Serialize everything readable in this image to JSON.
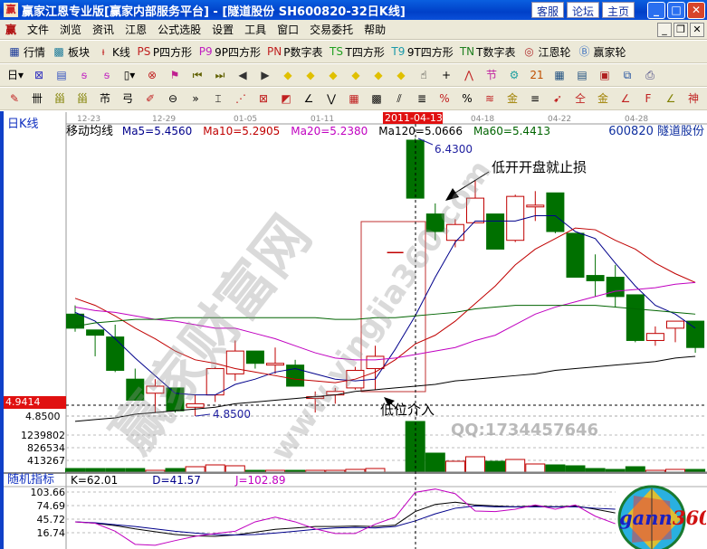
{
  "window": {
    "title": "赢家江恩专业版[赢家内部服务平台] - [隧道股份   SH600820-32日K线]",
    "logo_text": "赢",
    "buttons": [
      "客服",
      "论坛",
      "主页"
    ]
  },
  "menu": {
    "items": [
      "文件",
      "浏览",
      "资讯",
      "江恩",
      "公式选股",
      "设置",
      "工具",
      "窗口",
      "交易委托",
      "帮助"
    ]
  },
  "toolbar1": [
    {
      "icon": "grid-table-icon",
      "glyph": "▦",
      "label": "行情"
    },
    {
      "icon": "blocks-icon",
      "glyph": "▩",
      "label": "板块"
    },
    {
      "icon": "kline-icon",
      "glyph": "ᵼ",
      "label": "K线"
    },
    {
      "icon": "ps-icon",
      "glyph": "PS",
      "label": "P四方形"
    },
    {
      "icon": "p9-icon",
      "glyph": "P9",
      "label": "9P四方形"
    },
    {
      "icon": "pn-icon",
      "glyph": "PN",
      "label": "P数字表"
    },
    {
      "icon": "ts-icon",
      "glyph": "TS",
      "label": "T四方形"
    },
    {
      "icon": "t9-icon",
      "glyph": "T9",
      "label": "9T四方形"
    },
    {
      "icon": "tn-icon",
      "glyph": "TN",
      "label": "T数字表"
    },
    {
      "icon": "gann-wheel-icon",
      "glyph": "◎",
      "label": "江恩轮"
    },
    {
      "icon": "big-wheel-icon",
      "glyph": "Ⓑ",
      "label": "赢家轮"
    }
  ],
  "toolbar2": [
    {
      "icon": "day-period-icon",
      "glyph": "日▾"
    },
    {
      "icon": "pattern-icon",
      "glyph": "⊠"
    },
    {
      "icon": "doc-icon",
      "glyph": "▤"
    },
    {
      "icon": "wave3-icon",
      "glyph": "ᵴ"
    },
    {
      "icon": "wave9-icon",
      "glyph": "ᵴ"
    },
    {
      "icon": "candle-type-icon",
      "glyph": "▯▾"
    },
    {
      "icon": "cross-tool-icon",
      "glyph": "⊗"
    },
    {
      "icon": "flag-icon",
      "glyph": "⚑"
    },
    {
      "icon": "first-icon",
      "glyph": "⏮"
    },
    {
      "icon": "last-icon",
      "glyph": "⏭"
    },
    {
      "icon": "prev-icon",
      "glyph": "◀"
    },
    {
      "icon": "next-icon",
      "glyph": "▶"
    },
    {
      "icon": "diamond-left-icon",
      "glyph": "◆"
    },
    {
      "icon": "diamond-right-icon",
      "glyph": "◆"
    },
    {
      "icon": "diamond-h-icon",
      "glyph": "◆"
    },
    {
      "icon": "diamond-x-icon",
      "glyph": "◆"
    },
    {
      "icon": "diamond-plus-icon",
      "glyph": "◆"
    },
    {
      "icon": "diamond-v-icon",
      "glyph": "◆"
    },
    {
      "icon": "hand-icon",
      "glyph": "☝"
    },
    {
      "icon": "crosshair-icon",
      "glyph": "+"
    },
    {
      "icon": "draw-line-icon",
      "glyph": "⋀"
    },
    {
      "icon": "festival-icon",
      "glyph": "节"
    },
    {
      "icon": "gear-chart-icon",
      "glyph": "⚙"
    },
    {
      "icon": "calendar-icon",
      "glyph": "21"
    },
    {
      "icon": "calculator-icon",
      "glyph": "▦"
    },
    {
      "icon": "notes-icon",
      "glyph": "▤"
    },
    {
      "icon": "save-icon",
      "glyph": "▣"
    },
    {
      "icon": "network-icon",
      "glyph": "⧉"
    },
    {
      "icon": "print-icon",
      "glyph": "⎙"
    }
  ],
  "toolbar3": [
    {
      "icon": "pen-icon",
      "glyph": "✎"
    },
    {
      "icon": "parallel-icon",
      "glyph": "卌"
    },
    {
      "icon": "gann-square-icon",
      "glyph": "甾"
    },
    {
      "icon": "gann-square2-icon",
      "glyph": "甾"
    },
    {
      "icon": "tool-f-icon",
      "glyph": "芇"
    },
    {
      "icon": "spiral-icon",
      "glyph": "弓"
    },
    {
      "icon": "fan-pen-icon",
      "glyph": "✐"
    },
    {
      "icon": "circle-icon",
      "glyph": "⊖"
    },
    {
      "icon": "more-icon",
      "glyph": "»"
    },
    {
      "icon": "rect-tool-icon",
      "glyph": "⌶"
    },
    {
      "icon": "fan-lines-icon",
      "glyph": "⋰"
    },
    {
      "icon": "box-icon",
      "glyph": "⊠"
    },
    {
      "icon": "angle-box-icon",
      "glyph": "◩"
    },
    {
      "icon": "angle-icon",
      "glyph": "∠"
    },
    {
      "icon": "v-icon",
      "glyph": "⋁"
    },
    {
      "icon": "grid-icon",
      "glyph": "▦"
    },
    {
      "icon": "grid2-icon",
      "glyph": "▩"
    },
    {
      "icon": "slash-icon",
      "glyph": "⫽"
    },
    {
      "icon": "ruler-icon",
      "glyph": "≣"
    },
    {
      "icon": "percent-fan-icon",
      "glyph": "%"
    },
    {
      "icon": "percent-icon",
      "glyph": "%"
    },
    {
      "icon": "percent-lines-icon",
      "glyph": "≋"
    },
    {
      "icon": "gold-circle-icon",
      "glyph": "金"
    },
    {
      "icon": "gold-lines-icon",
      "glyph": "≡"
    },
    {
      "icon": "arrow-tool-icon",
      "glyph": "➹"
    },
    {
      "icon": "gold-ratio-icon",
      "glyph": "仝"
    },
    {
      "icon": "gold-icon",
      "glyph": "金"
    },
    {
      "icon": "fan-j-icon",
      "glyph": "∠"
    },
    {
      "icon": "fan-f-icon",
      "glyph": "F"
    },
    {
      "icon": "fan-gold-icon",
      "glyph": "∠"
    },
    {
      "icon": "fan-shen-icon",
      "glyph": "神"
    },
    {
      "icon": "fan-ying-icon",
      "glyph": "赢"
    },
    {
      "icon": "fan-e-icon",
      "glyph": "∠"
    }
  ],
  "chart": {
    "period_label": "日K线",
    "stock": "600820 隧道股份",
    "date_labels": [
      "12-23",
      "12-29",
      "01-05",
      "01-11",
      "04-18",
      "04-22",
      "04-28"
    ],
    "cursor_date": "2011-04-13",
    "ma_title": "移动均线",
    "ma_readouts": [
      {
        "text": "Ma5=5.4560",
        "color": "#00008b"
      },
      {
        "text": "Ma10=5.2905",
        "color": "#c00000"
      },
      {
        "text": "Ma20=5.2380",
        "color": "#c000c0"
      },
      {
        "text": "Ma120=5.0666",
        "color": "#000000"
      },
      {
        "text": "Ma60=5.4413",
        "color": "#006400"
      }
    ],
    "cursor_price": "4.9414",
    "price_axis_label": "4.8500",
    "high_label": "6.4300",
    "low_label": "4.8500",
    "annotation_stop": "低开开盘就止损",
    "annotation_entry": "低位介入",
    "watermark_main": "赢家财富网",
    "watermark_url": "www.yingjia360.com",
    "watermark_qq": "QQ:1734457646",
    "up_color": "#c00000",
    "down_color": "#007000",
    "candles": [
      [
        5.43,
        5.48,
        5.33,
        5.35
      ],
      [
        5.34,
        5.34,
        5.19,
        5.31
      ],
      [
        5.3,
        5.37,
        5.1,
        5.11
      ],
      [
        5.06,
        5.12,
        4.94,
        4.94
      ],
      [
        4.98,
        5.06,
        4.87,
        5.02
      ],
      [
        5.01,
        5.01,
        4.87,
        4.88
      ],
      [
        4.9,
        4.97,
        4.85,
        4.92
      ],
      [
        4.97,
        5.13,
        4.93,
        5.12
      ],
      [
        5.09,
        5.28,
        5.05,
        5.22
      ],
      [
        5.22,
        5.22,
        5.12,
        5.15
      ],
      [
        5.14,
        5.24,
        5.09,
        5.15
      ],
      [
        5.14,
        5.17,
        5.02,
        5.02
      ],
      [
        4.95,
        4.99,
        4.87,
        4.96
      ],
      [
        4.97,
        5.01,
        4.92,
        4.99
      ],
      [
        5.01,
        5.13,
        5.0,
        5.11
      ],
      [
        5.12,
        5.25,
        5.0,
        5.19
      ],
      [
        5.78,
        5.78,
        5.78,
        5.78
      ],
      [
        6.42,
        6.43,
        6.09,
        6.09
      ],
      [
        6.0,
        6.06,
        5.85,
        5.9
      ],
      [
        5.85,
        5.97,
        5.81,
        5.94
      ],
      [
        5.95,
        6.19,
        5.95,
        6.09
      ],
      [
        6.0,
        6.0,
        5.8,
        5.8
      ],
      [
        5.85,
        6.11,
        5.84,
        6.1
      ],
      [
        6.04,
        6.13,
        5.96,
        6.05
      ],
      [
        6.12,
        6.12,
        5.89,
        5.9
      ],
      [
        5.89,
        5.89,
        5.64,
        5.64
      ],
      [
        5.65,
        5.77,
        5.53,
        5.62
      ],
      [
        5.64,
        5.71,
        5.47,
        5.53
      ],
      [
        5.54,
        5.54,
        5.27,
        5.28
      ],
      [
        5.28,
        5.36,
        5.25,
        5.32
      ],
      [
        5.35,
        5.39,
        5.27,
        5.39
      ],
      [
        5.39,
        5.39,
        5.21,
        5.24
      ]
    ],
    "ma": {
      "ma5": [
        5.44,
        5.39,
        5.29,
        5.18,
        5.08,
        4.98,
        4.97,
        4.97,
        5.03,
        5.06,
        5.1,
        5.12,
        5.09,
        5.06,
        5.05,
        5.06,
        5.23,
        5.42,
        5.64,
        5.84,
        5.96,
        5.96,
        5.96,
        5.99,
        5.99,
        5.9,
        5.86,
        5.72,
        5.59,
        5.48,
        5.43,
        5.35
      ],
      "ma10": [
        5.52,
        5.48,
        5.42,
        5.35,
        5.29,
        5.22,
        5.17,
        5.15,
        5.12,
        5.1,
        5.08,
        5.06,
        5.05,
        5.04,
        5.06,
        5.1,
        5.17,
        5.26,
        5.31,
        5.39,
        5.49,
        5.59,
        5.71,
        5.8,
        5.86,
        5.92,
        5.91,
        5.85,
        5.8,
        5.72,
        5.66,
        5.61
      ],
      "ma20": [
        5.47,
        5.45,
        5.44,
        5.42,
        5.4,
        5.39,
        5.37,
        5.35,
        5.35,
        5.32,
        5.29,
        5.25,
        5.21,
        5.18,
        5.17,
        5.17,
        5.18,
        5.2,
        5.22,
        5.24,
        5.28,
        5.31,
        5.37,
        5.43,
        5.47,
        5.5,
        5.53,
        5.56,
        5.57,
        5.58,
        5.6,
        5.61
      ],
      "ma60": [
        5.36,
        5.38,
        5.39,
        5.4,
        5.4,
        5.41,
        5.41,
        5.41,
        5.41,
        5.41,
        5.41,
        5.41,
        5.41,
        5.4,
        5.4,
        5.41,
        5.41,
        5.42,
        5.43,
        5.44,
        5.46,
        5.47,
        5.48,
        5.48,
        5.48,
        5.48,
        5.48,
        5.47,
        5.46,
        5.45,
        5.44,
        5.43
      ],
      "ma120": [
        4.82,
        4.83,
        4.84,
        4.86,
        4.87,
        4.88,
        4.89,
        4.9,
        4.92,
        4.93,
        4.94,
        4.95,
        4.96,
        4.97,
        4.99,
        5.0,
        5.01,
        5.02,
        5.03,
        5.05,
        5.06,
        5.07,
        5.08,
        5.09,
        5.11,
        5.12,
        5.13,
        5.14,
        5.15,
        5.16,
        5.18,
        5.19
      ]
    },
    "ma_colors": {
      "ma5": "#00008b",
      "ma10": "#c00000",
      "ma20": "#c000c0",
      "ma60": "#006400",
      "ma120": "#000000"
    }
  },
  "volume": {
    "axis_labels": [
      "1239802",
      "826534",
      "413267"
    ],
    "values": [
      118000,
      118000,
      118000,
      118000,
      59000,
      118000,
      177000,
      236000,
      207000,
      59000,
      59000,
      59000,
      59000,
      59000,
      89000,
      118000,
      0,
      1653000,
      620000,
      354000,
      502000,
      354000,
      413000,
      266000,
      236000,
      207000,
      118000,
      89000,
      177000,
      59000,
      89000,
      89000
    ]
  },
  "kdj": {
    "title": "随机指标",
    "readouts": [
      {
        "text": "K=62.01",
        "color": "#000000"
      },
      {
        "text": "D=41.57",
        "color": "#00008b"
      },
      {
        "text": "J=102.89",
        "color": "#c000c0"
      }
    ],
    "axis_labels": [
      "103.66",
      "74.69",
      "45.72",
      "16.74"
    ],
    "k": [
      40,
      37,
      32,
      25,
      19,
      13,
      10,
      9,
      12,
      18,
      24,
      27,
      30,
      30,
      31,
      30,
      33,
      62,
      77,
      82,
      76,
      74,
      72,
      74,
      72,
      74,
      67,
      59
    ],
    "d": [
      40,
      38,
      34,
      30,
      25,
      20,
      16,
      13,
      12,
      13,
      16,
      20,
      24,
      27,
      28,
      27,
      30,
      42,
      57,
      69,
      74,
      72,
      72,
      72,
      72,
      72,
      69,
      67
    ],
    "j": [
      40,
      37,
      20,
      -8,
      -10,
      0,
      9,
      15,
      20,
      40,
      50,
      40,
      25,
      15,
      15,
      35,
      50,
      103,
      110,
      100,
      63,
      62,
      67,
      76,
      67,
      76,
      52,
      36
    ]
  },
  "gann_logo": {
    "text": "gann360",
    "ring_digits": "1234567890123456789"
  }
}
